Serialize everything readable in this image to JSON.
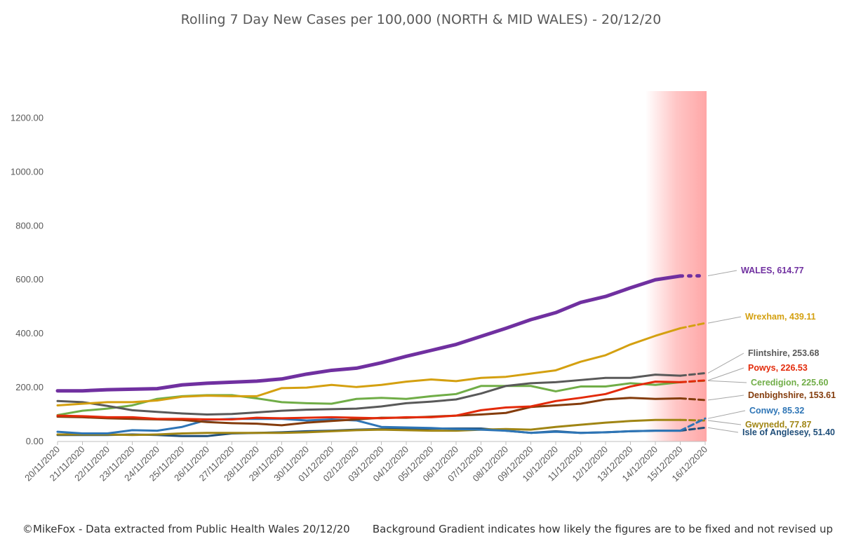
{
  "chart_data": {
    "type": "line",
    "title": "Rolling 7 Day New Cases per 100,000 (NORTH & MID WALES) - 20/12/20",
    "xlabel": "",
    "ylabel": "",
    "ylim": [
      0,
      1300
    ],
    "yticks": [
      "0.00",
      "200.00",
      "400.00",
      "600.00",
      "800.00",
      "1000.00",
      "1200.00"
    ],
    "categories": [
      "20/11/2020",
      "21/11/2020",
      "22/11/2020",
      "23/11/2020",
      "24/11/2020",
      "25/11/2020",
      "26/11/2020",
      "27/11/2020",
      "28/11/2020",
      "29/11/2020",
      "30/11/2020",
      "01/12/2020",
      "02/12/2020",
      "03/12/2020",
      "04/12/2020",
      "05/12/2020",
      "06/12/2020",
      "07/12/2020",
      "08/12/2020",
      "09/12/2020",
      "10/12/2020",
      "11/12/2020",
      "12/12/2020",
      "13/12/2020",
      "14/12/2020",
      "15/12/2020",
      "16/12/2020"
    ],
    "grid": false,
    "legend": "end-labels",
    "series": [
      {
        "name": "Isle of Anglesey",
        "end_label": "Isle of Anglesey, 51.40",
        "color": "#1F4E79",
        "width": 3,
        "values": [
          24,
          24,
          24,
          26,
          24,
          20,
          20,
          30,
          32,
          34,
          38,
          40,
          44,
          46,
          46,
          48,
          48,
          48,
          40,
          32,
          38,
          32,
          34,
          38,
          40,
          40,
          51.4
        ]
      },
      {
        "name": "Gwynedd",
        "end_label": "Gwynedd, 77.87",
        "color": "#A08514",
        "width": 3,
        "values": [
          26,
          26,
          26,
          24,
          26,
          30,
          32,
          32,
          32,
          32,
          34,
          38,
          42,
          44,
          42,
          40,
          40,
          44,
          46,
          44,
          54,
          62,
          70,
          76,
          80,
          80,
          77.87
        ]
      },
      {
        "name": "Conwy",
        "end_label": "Conwy, 85.32",
        "color": "#2E75B6",
        "width": 3,
        "values": [
          36,
          30,
          30,
          42,
          40,
          54,
          80,
          84,
          84,
          84,
          78,
          82,
          78,
          54,
          52,
          50,
          46,
          44,
          40,
          32,
          36,
          32,
          34,
          38,
          40,
          40,
          85.32
        ]
      },
      {
        "name": "Denbighshire",
        "end_label": "Denbighshire, 153.61",
        "color": "#843C0C",
        "width": 3,
        "values": [
          92,
          90,
          86,
          84,
          82,
          80,
          72,
          68,
          66,
          60,
          70,
          76,
          82,
          88,
          88,
          92,
          96,
          100,
          106,
          128,
          134,
          140,
          156,
          162,
          158,
          160,
          153.61
        ]
      },
      {
        "name": "Ceredigion",
        "end_label": "Ceredigion, 225.60",
        "color": "#70AD47",
        "width": 3,
        "values": [
          98,
          114,
          122,
          134,
          158,
          168,
          172,
          172,
          160,
          146,
          142,
          140,
          158,
          162,
          158,
          168,
          176,
          206,
          206,
          206,
          186,
          204,
          204,
          216,
          210,
          220,
          225.6
        ]
      },
      {
        "name": "Powys",
        "end_label": "Powys, 226.53",
        "color": "#E32A0A",
        "width": 3,
        "values": [
          96,
          94,
          90,
          90,
          84,
          84,
          82,
          82,
          88,
          86,
          88,
          90,
          88,
          86,
          90,
          90,
          96,
          116,
          126,
          130,
          150,
          162,
          176,
          204,
          222,
          220,
          226.53
        ]
      },
      {
        "name": "Flintshire",
        "end_label": "Flintshire, 253.68",
        "color": "#595959",
        "width": 3,
        "values": [
          150,
          146,
          132,
          116,
          110,
          104,
          100,
          102,
          108,
          114,
          118,
          120,
          122,
          130,
          142,
          148,
          156,
          178,
          206,
          216,
          220,
          228,
          236,
          236,
          248,
          244,
          253.68
        ]
      },
      {
        "name": "Wrexham",
        "end_label": "Wrexham, 439.11",
        "color": "#D4A010",
        "width": 3,
        "values": [
          134,
          140,
          146,
          146,
          152,
          166,
          170,
          168,
          168,
          198,
          200,
          210,
          202,
          210,
          222,
          230,
          224,
          236,
          240,
          252,
          264,
          296,
          320,
          360,
          392,
          420,
          439.11
        ]
      },
      {
        "name": "WALES",
        "end_label": "WALES, 614.77",
        "color": "#7030A0",
        "width": 5,
        "values": [
          188,
          188,
          192,
          194,
          196,
          210,
          216,
          220,
          224,
          232,
          250,
          264,
          272,
          292,
          316,
          338,
          360,
          390,
          420,
          452,
          478,
          516,
          538,
          570,
          600,
          614,
          614.77
        ]
      }
    ],
    "shaded_region": {
      "from": "14/12/2020",
      "to": "16/12/2020"
    }
  },
  "footer": {
    "left": "©MikeFox - Data extracted from Public Health Wales 20/12/20",
    "right": "Background Gradient indicates how likely the figures are to be fixed and not revised up"
  }
}
